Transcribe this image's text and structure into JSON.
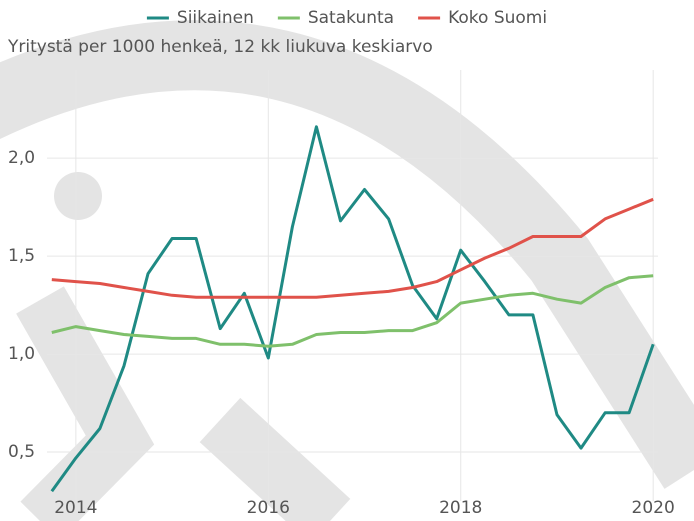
{
  "chart_data": {
    "type": "line",
    "subtitle": "Yritystä per 1000 henkeä, 12 kk liukuva keskiarvo",
    "x": [
      2013.75,
      2014,
      2014.25,
      2014.5,
      2014.75,
      2015,
      2015.25,
      2015.5,
      2015.75,
      2016,
      2016.25,
      2016.5,
      2016.75,
      2017,
      2017.25,
      2017.5,
      2017.75,
      2018,
      2018.25,
      2018.5,
      2018.75,
      2019,
      2019.25,
      2019.5,
      2019.75,
      2020
    ],
    "series": [
      {
        "name": "Siikainen",
        "color": "#1f8a84",
        "values": [
          0.3,
          0.47,
          0.62,
          0.94,
          1.41,
          1.59,
          1.59,
          1.13,
          1.31,
          0.98,
          1.65,
          2.16,
          1.68,
          1.84,
          1.69,
          1.35,
          1.18,
          1.53,
          1.37,
          1.2,
          1.2,
          0.69,
          0.52,
          0.7,
          0.7,
          1.05
        ]
      },
      {
        "name": "Satakunta",
        "color": "#7fc06b",
        "values": [
          1.11,
          1.14,
          1.12,
          1.1,
          1.09,
          1.08,
          1.08,
          1.05,
          1.05,
          1.04,
          1.05,
          1.1,
          1.11,
          1.11,
          1.12,
          1.12,
          1.16,
          1.26,
          1.28,
          1.3,
          1.31,
          1.28,
          1.26,
          1.34,
          1.39,
          1.4
        ]
      },
      {
        "name": "Koko Suomi",
        "color": "#e0524a",
        "values": [
          1.38,
          1.37,
          1.36,
          1.34,
          1.32,
          1.3,
          1.29,
          1.29,
          1.29,
          1.29,
          1.29,
          1.29,
          1.3,
          1.31,
          1.32,
          1.34,
          1.37,
          1.43,
          1.49,
          1.54,
          1.6,
          1.6,
          1.6,
          1.69,
          1.74,
          1.79
        ]
      }
    ],
    "xlim": [
      2013.7,
      2020.05
    ],
    "xticks": [
      2014,
      2016,
      2018,
      2020
    ],
    "ylim": [
      0.25,
      2.45
    ],
    "yticks": [
      {
        "value": 0.5,
        "label": "0,5"
      },
      {
        "value": 1,
        "label": "1,0"
      },
      {
        "value": 1.5,
        "label": "1,5"
      },
      {
        "value": 2,
        "label": "2,0"
      }
    ],
    "grid": true
  }
}
